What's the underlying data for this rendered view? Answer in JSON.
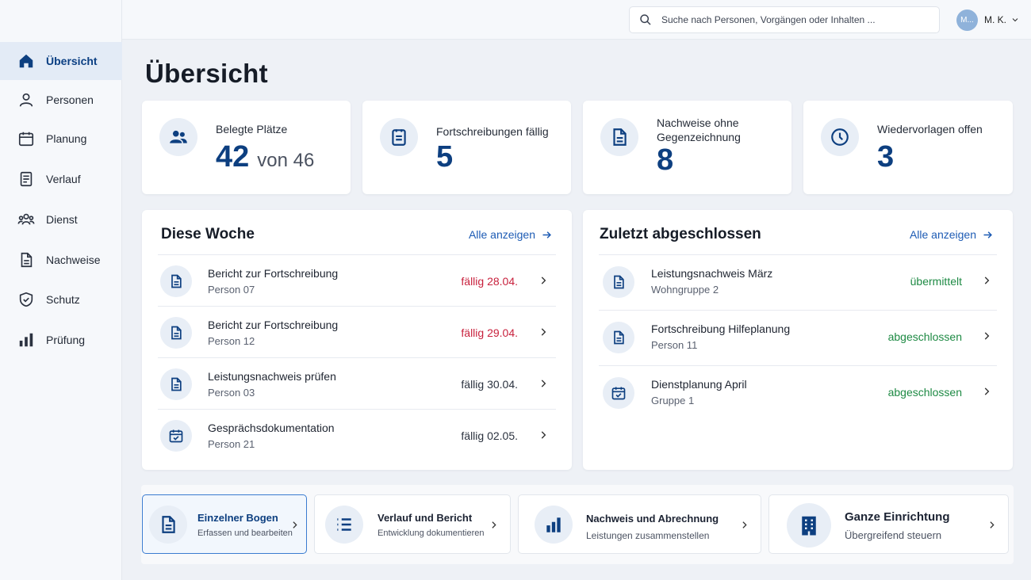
{
  "sidebar": {
    "items": [
      {
        "label": "Übersicht",
        "icon": "home-icon",
        "active": true
      },
      {
        "label": "Personen",
        "icon": "person-icon"
      },
      {
        "label": "Planung",
        "icon": "calendar-icon"
      },
      {
        "label": "Verlauf",
        "icon": "history-icon"
      },
      {
        "label": "Dienst",
        "icon": "group-icon"
      },
      {
        "label": "Nachweise",
        "icon": "document-icon"
      },
      {
        "label": "Schutz",
        "icon": "shield-icon"
      },
      {
        "label": "Prüfung",
        "icon": "bar-chart-icon"
      }
    ]
  },
  "topbar": {
    "search_placeholder": "Suche nach Personen, Vorgängen oder Inhalten ...",
    "user_initials": "M...",
    "user_name": "M. K."
  },
  "page": {
    "title": "Übersicht"
  },
  "stats": [
    {
      "label": "Belegte Plätze",
      "value": "42",
      "sub": "von 46",
      "icon": "people-icon"
    },
    {
      "label": "Fortschreibungen fällig",
      "value": "5",
      "icon": "notes-icon"
    },
    {
      "label": "Nachweise ohne Gegenzeichnung",
      "value": "8",
      "icon": "document-icon"
    },
    {
      "label": "Wiedervorlagen offen",
      "value": "3",
      "icon": "clock-icon"
    }
  ],
  "week": {
    "title": "Diese Woche",
    "link": "Alle anzeigen",
    "rows": [
      {
        "title": "Bericht zur Fortschreibung",
        "sub": "Person 07",
        "status": "fällig 28.04.",
        "icon": "document-icon"
      },
      {
        "title": "Bericht zur Fortschreibung",
        "sub": "Person 12",
        "status": "fällig 29.04.",
        "icon": "document-icon"
      },
      {
        "title": "Leistungsnachweis prüfen",
        "sub": "Person 03",
        "status": "fällig 30.04.",
        "icon": "document-icon"
      },
      {
        "title": "Gesprächsdokumentation",
        "sub": "Person 21",
        "status": "fällig 02.05.",
        "icon": "calendar-check-icon"
      }
    ]
  },
  "done": {
    "title": "Zuletzt abgeschlossen",
    "link": "Alle anzeigen",
    "rows": [
      {
        "title": "Leistungsnachweis März",
        "sub": "Wohngruppe 2",
        "status": "übermittelt",
        "icon": "document-icon"
      },
      {
        "title": "Fortschreibung Hilfeplanung",
        "sub": "Person 11",
        "status": "abgeschlossen",
        "icon": "document-icon"
      },
      {
        "title": "Dienstplanung April",
        "sub": "Gruppe 1",
        "status": "abgeschlossen",
        "icon": "calendar-check-icon"
      }
    ]
  },
  "actions": [
    {
      "title": "Einzelner Bogen",
      "sub": "Erfassen und bearbeiten",
      "icon": "document-icon",
      "active": true
    },
    {
      "title": "Verlauf und Bericht",
      "sub": "Entwicklung dokumentieren",
      "icon": "list-icon"
    },
    {
      "title": "Nachweis und Abrechnung",
      "sub": "Leistungen zusammenstellen",
      "icon": "bar-chart-icon"
    },
    {
      "title": "Ganze Einrichtung",
      "sub": "Übergreifend steuern",
      "icon": "building-icon"
    }
  ],
  "colors": {
    "accent": "#0d3f80",
    "link": "#1d5bb4",
    "due_red": "#c8213d",
    "done_green": "#1e8a44"
  }
}
